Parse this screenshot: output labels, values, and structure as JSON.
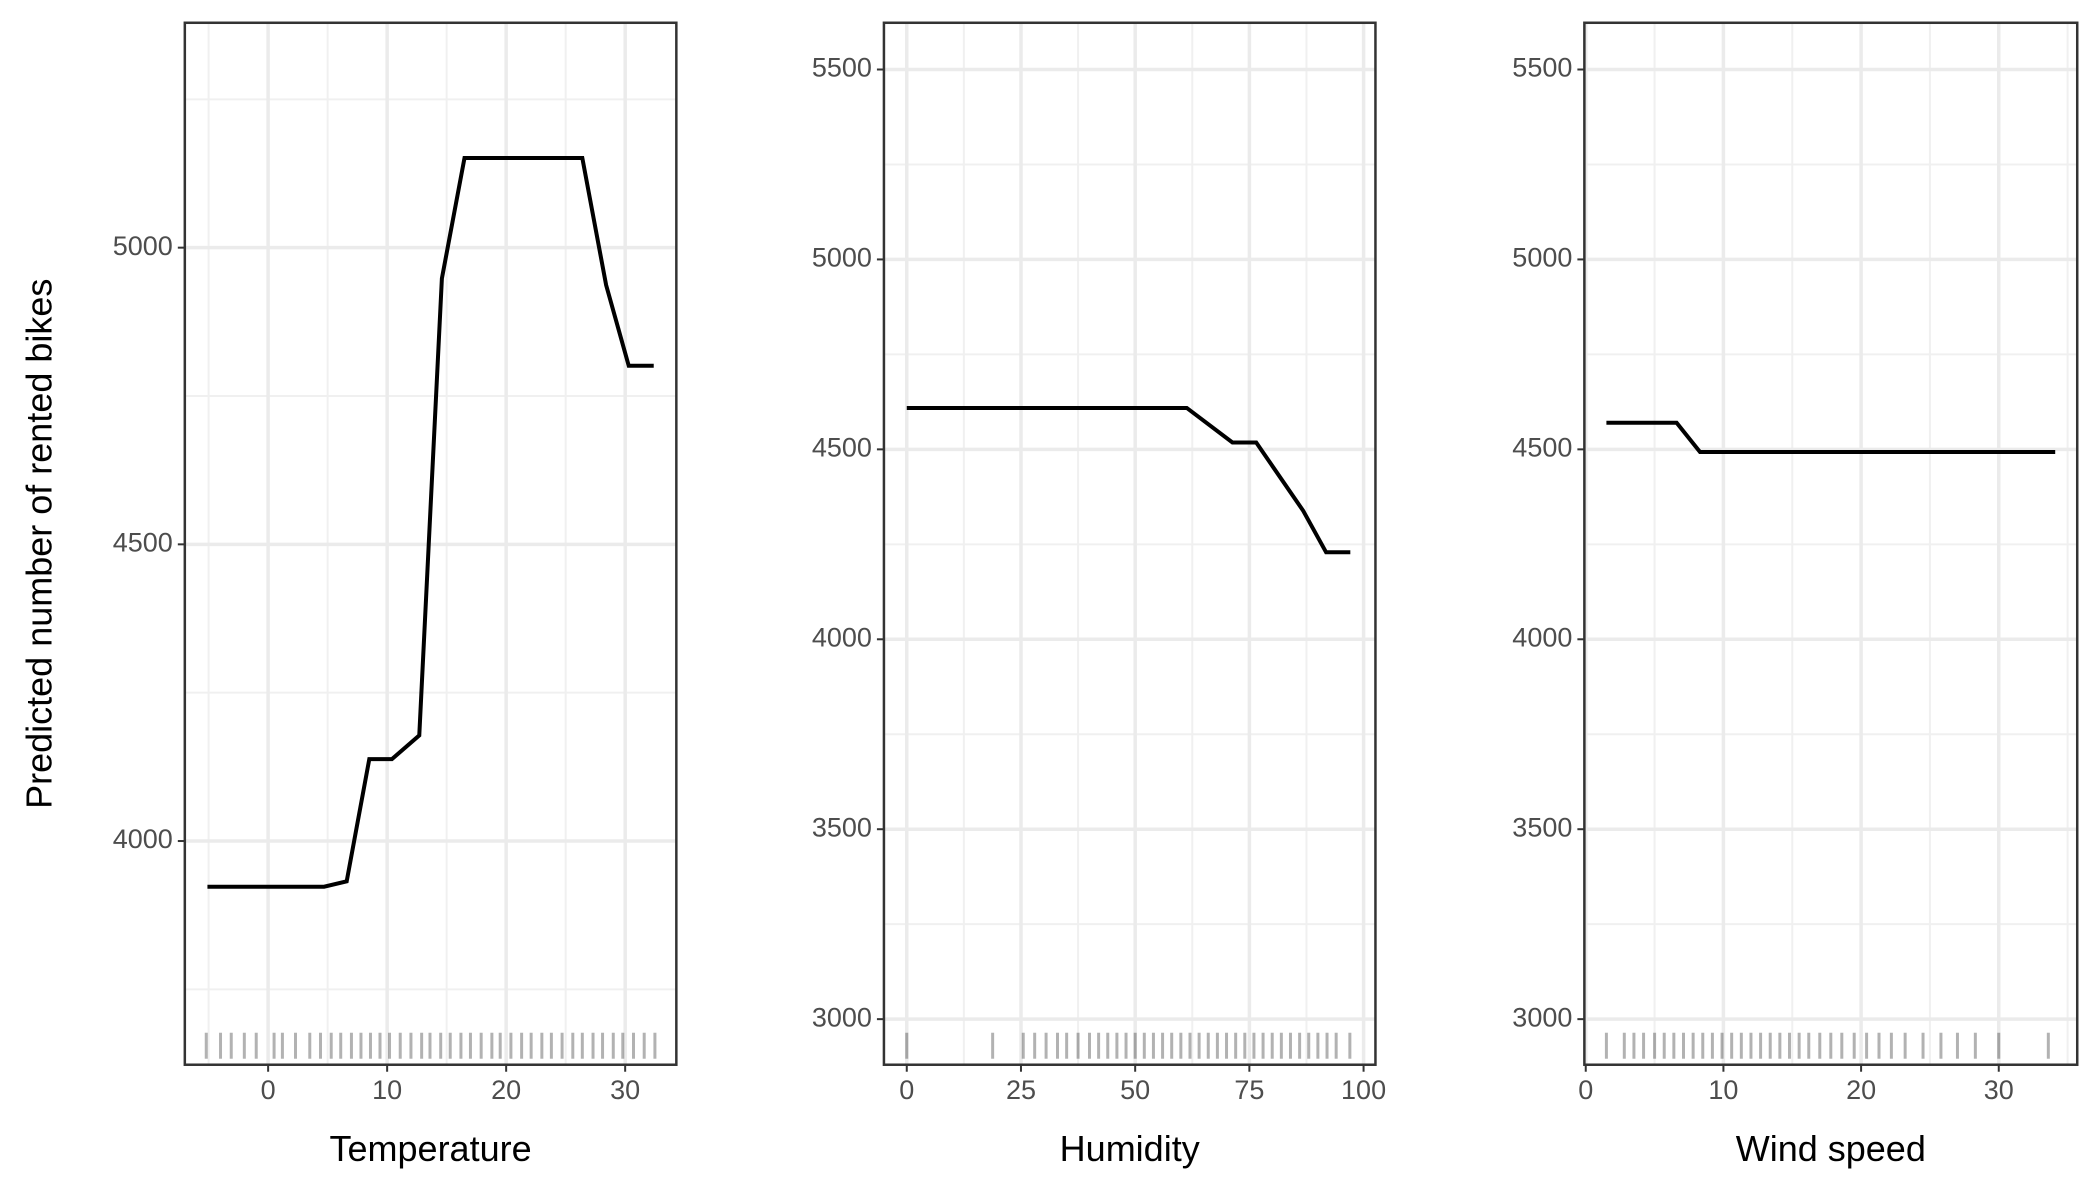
{
  "chart_data": [
    {
      "type": "line",
      "x_label": "Temperature",
      "y_label": "Predicted number of rented bikes",
      "color": "#000000",
      "grid": true,
      "x": [
        -5.1,
        4.7,
        6.6,
        8.5,
        10.4,
        12.7,
        14.6,
        16.5,
        26.4,
        28.4,
        30.3,
        32.4
      ],
      "values": [
        3923,
        3923,
        3932,
        4138,
        4138,
        4178,
        4948,
        5151,
        5151,
        4937,
        4801,
        4801
      ],
      "xlim": [
        -7,
        34.3
      ],
      "ylim": [
        3623,
        5379
      ],
      "xticks": [
        0,
        10,
        20,
        30
      ],
      "yticks": [
        4000,
        4500,
        5000
      ],
      "rug": [
        -5.2,
        -4,
        -3.1,
        -2,
        -1,
        0.5,
        1.2,
        2.3,
        3.5,
        4.4,
        5.3,
        6.1,
        7,
        7.8,
        8.6,
        9.4,
        10.2,
        11.1,
        12,
        12.9,
        13.6,
        14.5,
        15.3,
        16.2,
        17,
        17.9,
        18.8,
        19.5,
        20.4,
        21.3,
        22.1,
        23,
        23.8,
        24.7,
        25.6,
        26.4,
        27.3,
        28.1,
        29,
        29.8,
        30.7,
        31.6,
        32.5
      ]
    },
    {
      "type": "line",
      "x_label": "Humidity",
      "color": "#000000",
      "grid": true,
      "x": [
        0,
        61.3,
        71.3,
        76.5,
        86.8,
        91.8,
        97.1
      ],
      "values": [
        4609,
        4609,
        4518,
        4518,
        4338,
        4229,
        4229
      ],
      "xlim": [
        -5,
        102.6
      ],
      "ylim": [
        2880,
        5623
      ],
      "xticks": [
        0,
        25,
        50,
        75,
        100
      ],
      "yticks": [
        3000,
        3500,
        4000,
        4500,
        5000,
        5500
      ],
      "rug": [
        0,
        18.8,
        25.5,
        28,
        30.5,
        33,
        35,
        37.5,
        40,
        42,
        44,
        46,
        48,
        50,
        52,
        54,
        56,
        58,
        60,
        62,
        64,
        66,
        68,
        70,
        72,
        74,
        76,
        78,
        80,
        82,
        84,
        86,
        88,
        90,
        92,
        94,
        97
      ]
    },
    {
      "type": "line",
      "x_label": "Wind speed",
      "color": "#000000",
      "grid": true,
      "x": [
        1.5,
        6.6,
        8.3,
        34.1
      ],
      "values": [
        4570,
        4570,
        4493,
        4493
      ],
      "xlim": [
        -0.1,
        35.7
      ],
      "ylim": [
        2880,
        5623
      ],
      "xticks": [
        0,
        10,
        20,
        30
      ],
      "yticks": [
        3000,
        3500,
        4000,
        4500,
        5000,
        5500
      ],
      "rug": [
        1.5,
        2.8,
        3.5,
        4.2,
        5,
        5.7,
        6.4,
        7.1,
        7.8,
        8.5,
        9.2,
        9.9,
        10.6,
        11.3,
        12,
        12.7,
        13.4,
        14.1,
        14.8,
        15.5,
        16.2,
        17,
        17.8,
        18.6,
        19.5,
        20.4,
        21.3,
        22.2,
        23.2,
        24.5,
        25.8,
        27,
        28.3,
        30,
        33.6
      ]
    }
  ]
}
